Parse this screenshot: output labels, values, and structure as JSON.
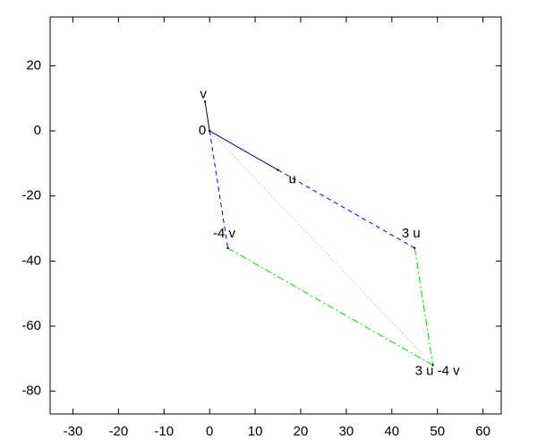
{
  "chart_data": {
    "type": "vector",
    "xlim": [
      -35,
      64
    ],
    "ylim": [
      -87,
      35
    ],
    "xticks": [
      -30,
      -20,
      -10,
      0,
      10,
      20,
      30,
      40,
      50,
      60
    ],
    "yticks": [
      -80,
      -60,
      -40,
      -20,
      0,
      20
    ],
    "points": [
      {
        "label": "0",
        "x": 0,
        "y": 0
      },
      {
        "label": "v",
        "x": -1,
        "y": 9
      },
      {
        "label": "u",
        "x": 15,
        "y": -12
      },
      {
        "label": "3 u",
        "x": 45,
        "y": -36
      },
      {
        "label": "-4 v",
        "x": 4,
        "y": -36
      },
      {
        "label": "3 u -4 v",
        "x": 49,
        "y": -72
      }
    ],
    "series": [
      {
        "color": "#000080",
        "dash": "solid",
        "x": [
          0,
          15
        ],
        "y": [
          0,
          -12
        ]
      },
      {
        "color": "#000000",
        "dash": "solid",
        "x": [
          0,
          -1
        ],
        "y": [
          0,
          9
        ]
      },
      {
        "color": "#0000ff",
        "dash": "dashed",
        "x": [
          15,
          45
        ],
        "y": [
          -12,
          -36
        ]
      },
      {
        "color": "#0000ff",
        "dash": "dashed",
        "x": [
          0,
          4
        ],
        "y": [
          0,
          -36
        ]
      },
      {
        "color": "#00dd00",
        "dash": "dashdot",
        "x": [
          45,
          49
        ],
        "y": [
          -36,
          -72
        ]
      },
      {
        "color": "#00dd00",
        "dash": "dashdot",
        "x": [
          4,
          49
        ],
        "y": [
          -36,
          -72
        ]
      },
      {
        "color": "#aaaaaa",
        "dash": "dotted",
        "x": [
          0,
          49
        ],
        "y": [
          0,
          -72
        ]
      }
    ]
  }
}
